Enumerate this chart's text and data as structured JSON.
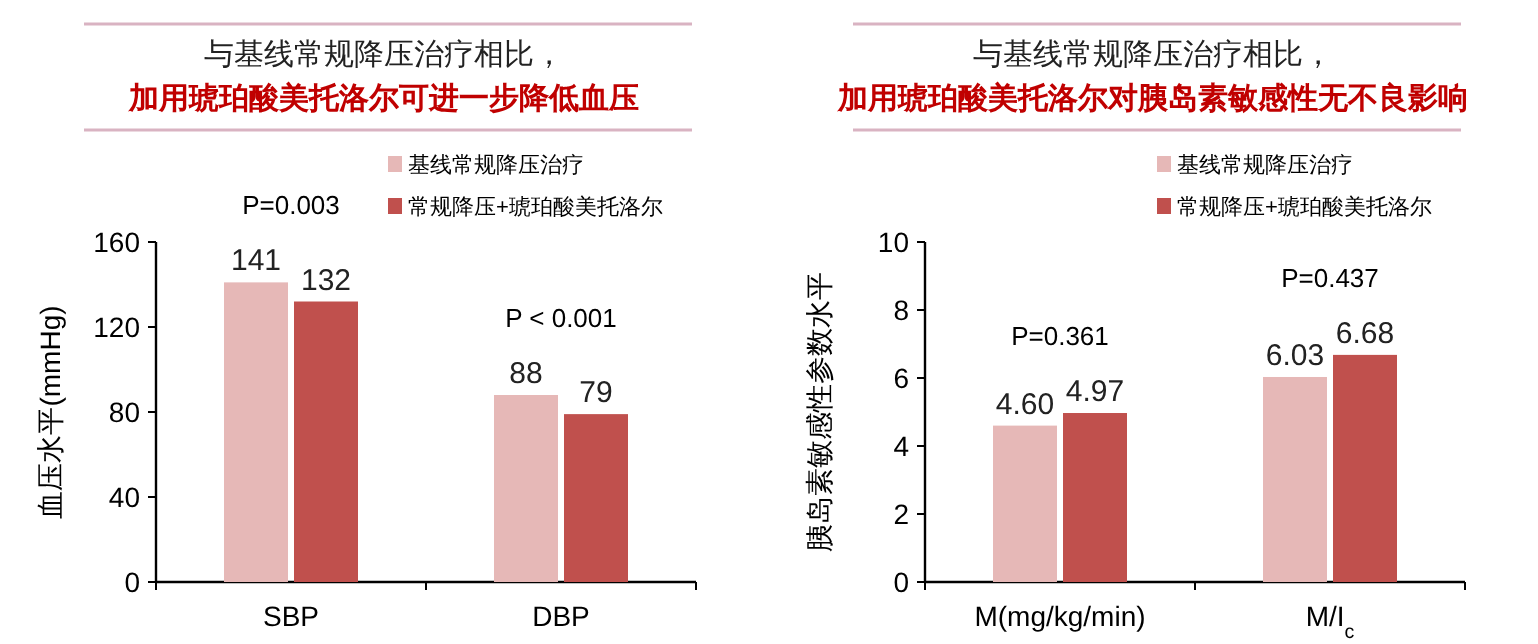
{
  "chart_data": [
    {
      "type": "bar",
      "title": "与基线常规降压治疗相比，",
      "subtitle": "加用琥珀酸美托洛尔可进一步降低血压",
      "ylabel": "血压水平(mmHg)",
      "categories": [
        "SBP",
        "DBP"
      ],
      "series": [
        {
          "name": "基线常规降压治疗",
          "color": "#e6b8b7",
          "values": [
            141,
            88
          ]
        },
        {
          "name": "常规降压+琥珀酸美托洛尔",
          "color": "#c0504d",
          "values": [
            132,
            79
          ]
        }
      ],
      "ylim": [
        0,
        160
      ],
      "yticks": [
        0,
        40,
        80,
        120,
        160
      ],
      "data_labels": true,
      "legend": "top right",
      "grid": false,
      "annotations": [
        "P=0.003",
        "P < 0.001"
      ]
    },
    {
      "type": "bar",
      "title": "与基线常规降压治疗相比，",
      "subtitle": "加用琥珀酸美托洛尔对胰岛素敏感性无不良影响",
      "ylabel": "胰岛素敏感性参数水平",
      "categories": [
        "M(mg/kg/min)",
        "M/I$_{c}$"
      ],
      "series": [
        {
          "name": "基线常规降压治疗",
          "color": "#e6b8b7",
          "values": [
            4.6,
            6.03
          ],
          "value_labels": [
            "4.60",
            "6.03"
          ]
        },
        {
          "name": "常规降压+琥珀酸美托洛尔",
          "color": "#c0504d",
          "values": [
            4.97,
            6.68
          ],
          "value_labels": [
            "4.97",
            "6.68"
          ]
        }
      ],
      "ylim": [
        0,
        10
      ],
      "yticks": [
        0,
        2,
        4,
        6,
        8,
        10
      ],
      "legend": "top right",
      "grid": false,
      "annotations": [
        "P=0.361",
        "P=0.437"
      ]
    }
  ]
}
